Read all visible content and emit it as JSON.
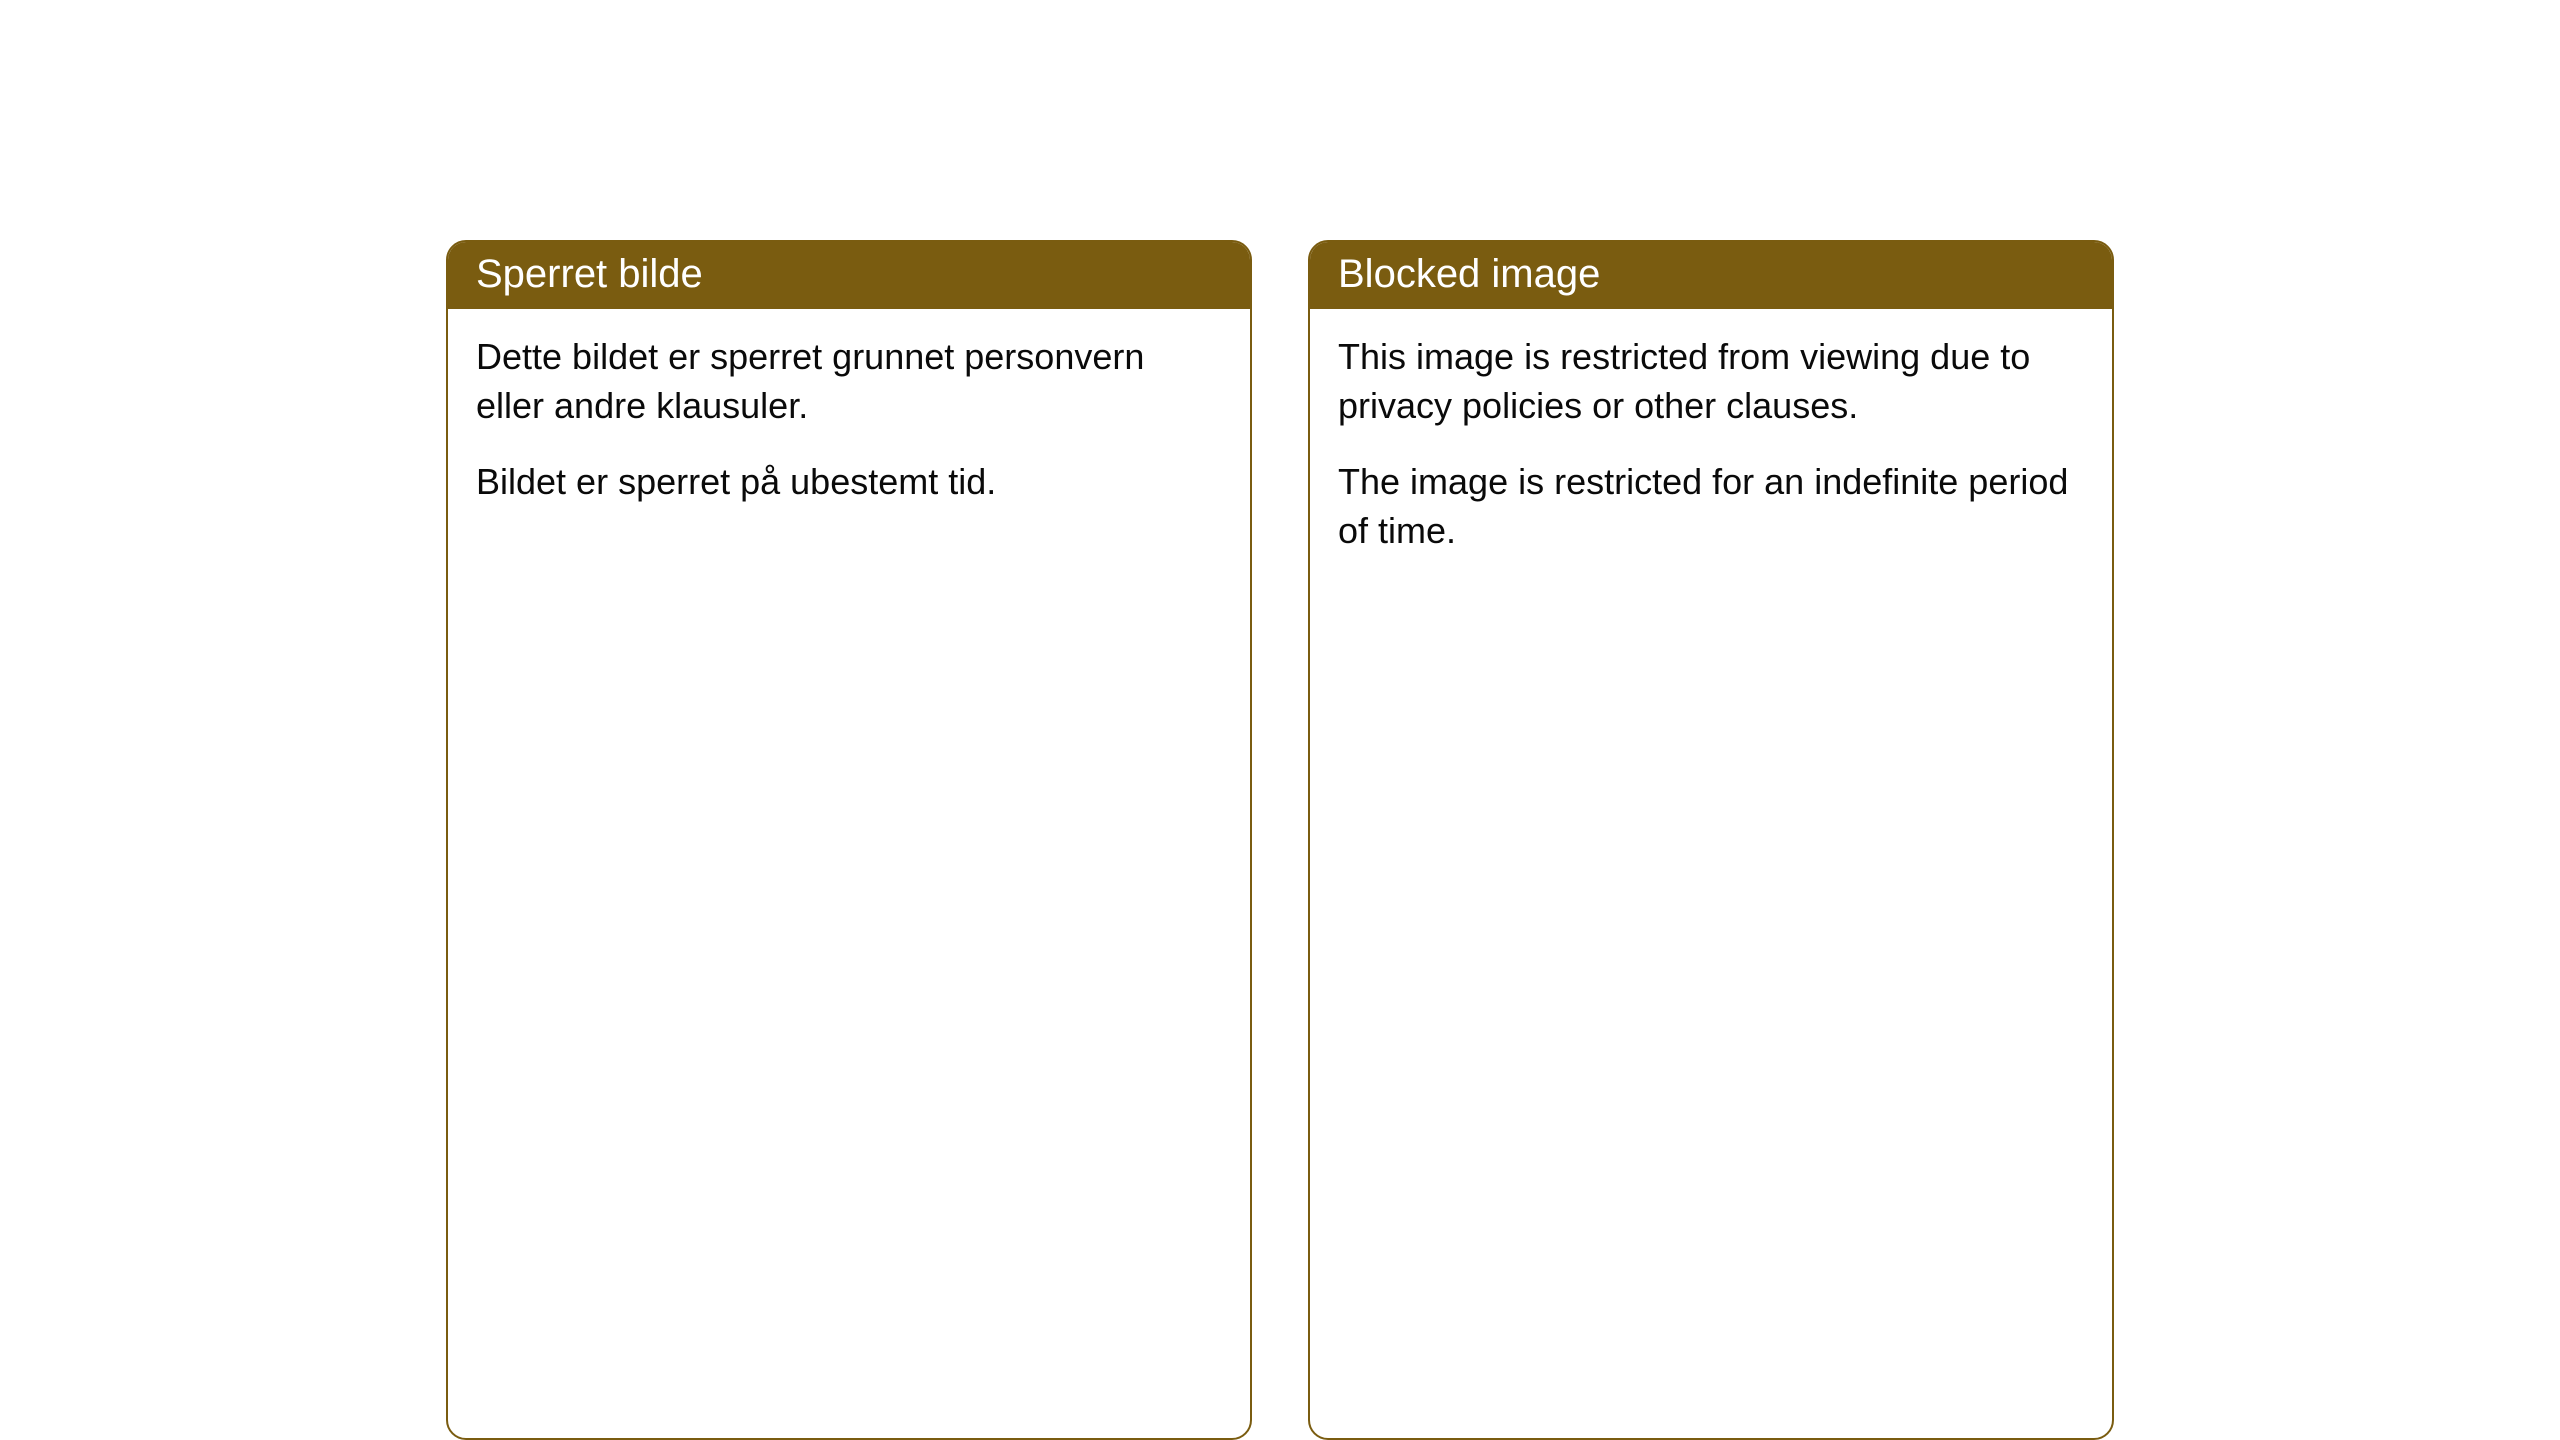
{
  "cards": [
    {
      "title": "Sperret bilde",
      "paragraph1": "Dette bildet er sperret grunnet personvern eller andre klausuler.",
      "paragraph2": "Bildet er sperret på ubestemt tid."
    },
    {
      "title": "Blocked image",
      "paragraph1": "This image is restricted from viewing due to privacy policies or other clauses.",
      "paragraph2": "The image is restricted for an indefinite period of time."
    }
  ],
  "styling": {
    "header_background": "#7a5c10",
    "header_text_color": "#ffffff",
    "border_color": "#7a5c10",
    "body_background": "#ffffff",
    "body_text_color": "#0a0a0a",
    "border_radius": 20,
    "header_fontsize": 40,
    "body_fontsize": 36
  }
}
